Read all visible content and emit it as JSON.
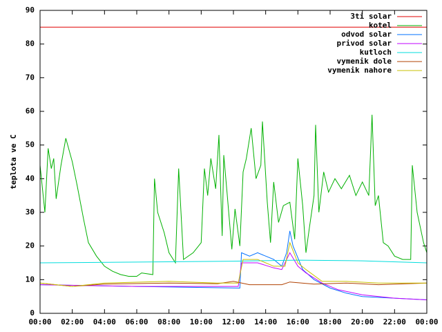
{
  "chart_data": {
    "type": "line",
    "ylabel": "teplota ve C",
    "xlim": [
      0,
      24
    ],
    "ylim": [
      0,
      90
    ],
    "xticks": [
      {
        "value": 0,
        "label": "00:00"
      },
      {
        "value": 2,
        "label": "02:00"
      },
      {
        "value": 4,
        "label": "04:00"
      },
      {
        "value": 6,
        "label": "06:00"
      },
      {
        "value": 8,
        "label": "08:00"
      },
      {
        "value": 10,
        "label": "10:00"
      },
      {
        "value": 12,
        "label": "12:00"
      },
      {
        "value": 14,
        "label": "14:00"
      },
      {
        "value": 16,
        "label": "16:00"
      },
      {
        "value": 18,
        "label": "18:00"
      },
      {
        "value": 20,
        "label": "20:00"
      },
      {
        "value": 22,
        "label": "22:00"
      },
      {
        "value": 24,
        "label": "00:00"
      }
    ],
    "yticks": [
      0,
      10,
      20,
      30,
      40,
      50,
      60,
      70,
      80,
      90
    ],
    "legend": "top right",
    "grid": false,
    "series": [
      {
        "name": "3ti solar",
        "color": "#e00000",
        "x": [
          0,
          24
        ],
        "values": [
          85,
          85
        ]
      },
      {
        "name": "kotel",
        "color": "#00b000",
        "x": [
          0,
          0.3,
          0.5,
          0.7,
          0.85,
          1,
          1.3,
          1.6,
          2,
          2.3,
          2.7,
          3,
          3.5,
          4,
          4.5,
          5,
          5.5,
          6,
          6.3,
          7,
          7.1,
          7.3,
          7.7,
          8,
          8.4,
          8.6,
          8.9,
          9.5,
          10,
          10.2,
          10.4,
          10.6,
          10.9,
          11.1,
          11.3,
          11.4,
          11.6,
          11.9,
          12.1,
          12.4,
          12.6,
          12.8,
          13.1,
          13.4,
          13.7,
          13.8,
          14.1,
          14.3,
          14.5,
          14.8,
          15.1,
          15.5,
          15.8,
          16,
          16.3,
          16.5,
          16.7,
          17,
          17.1,
          17.3,
          17.6,
          17.9,
          18.3,
          18.7,
          19.2,
          19.6,
          20,
          20.4,
          20.6,
          20.8,
          21,
          21.3,
          21.6,
          22,
          22.5,
          23,
          23.1,
          23.4,
          23.8,
          24
        ],
        "values": [
          44,
          30,
          49,
          43,
          46,
          34,
          44,
          52,
          45,
          38,
          28,
          21,
          17,
          14,
          12.5,
          11.5,
          11,
          11,
          12,
          11.5,
          40,
          30,
          24,
          18,
          15,
          43,
          16,
          18,
          21,
          43,
          35,
          46,
          37,
          53,
          23,
          47,
          36,
          19,
          31,
          20,
          42,
          46,
          55,
          40,
          44,
          57,
          33,
          21,
          39,
          27,
          32,
          33,
          22,
          46,
          32,
          18,
          25,
          35,
          56,
          30,
          42,
          36,
          40,
          37,
          41,
          35,
          39,
          35,
          59,
          32,
          35,
          21,
          20,
          17,
          16,
          16,
          44,
          30,
          21,
          18
        ]
      },
      {
        "name": "odvod solar",
        "color": "#0070ff",
        "x": [
          0,
          6,
          12.4,
          12.5,
          13,
          13.5,
          14.5,
          15,
          15.3,
          15.5,
          15.7,
          16.3,
          17,
          18,
          19,
          20,
          22,
          24
        ],
        "values": [
          8.5,
          8,
          7.5,
          18,
          17,
          18,
          16,
          14,
          18,
          24.5,
          20,
          13,
          10,
          7.5,
          6,
          5,
          4.5,
          4
        ]
      },
      {
        "name": "privod solar",
        "color": "#c000ff",
        "x": [
          0,
          6,
          12.3,
          12.5,
          13.5,
          14.5,
          15,
          15.5,
          16,
          16.5,
          17.5,
          18.5,
          20,
          22,
          24
        ],
        "values": [
          8.5,
          8,
          8,
          15,
          15,
          13.5,
          13,
          18,
          14,
          12,
          9,
          7,
          5.5,
          4.5,
          4
        ]
      },
      {
        "name": "kutloch",
        "color": "#00dddd",
        "x": [
          0,
          8,
          12,
          16,
          20,
          24
        ],
        "values": [
          15,
          15.3,
          15.5,
          15.8,
          15.6,
          15
        ]
      },
      {
        "name": "vymenik dole",
        "color": "#b04000",
        "x": [
          0,
          2,
          4,
          8,
          11,
          12,
          13,
          15,
          15.5,
          17,
          19,
          21,
          24
        ],
        "values": [
          9,
          8,
          8.7,
          9,
          8.8,
          9.5,
          8.5,
          8.5,
          9.3,
          8.7,
          9,
          8.5,
          9
        ]
      },
      {
        "name": "vymenik nahore",
        "color": "#c8c000",
        "x": [
          0,
          2,
          4,
          8,
          11,
          12.3,
          12.6,
          13.5,
          14.5,
          15.2,
          15.5,
          16,
          16.5,
          17.5,
          19,
          21,
          24
        ],
        "values": [
          9,
          8,
          9,
          9.5,
          9,
          9,
          16,
          16,
          14,
          14,
          21,
          15,
          13,
          9.5,
          9.5,
          9,
          9
        ]
      }
    ]
  }
}
